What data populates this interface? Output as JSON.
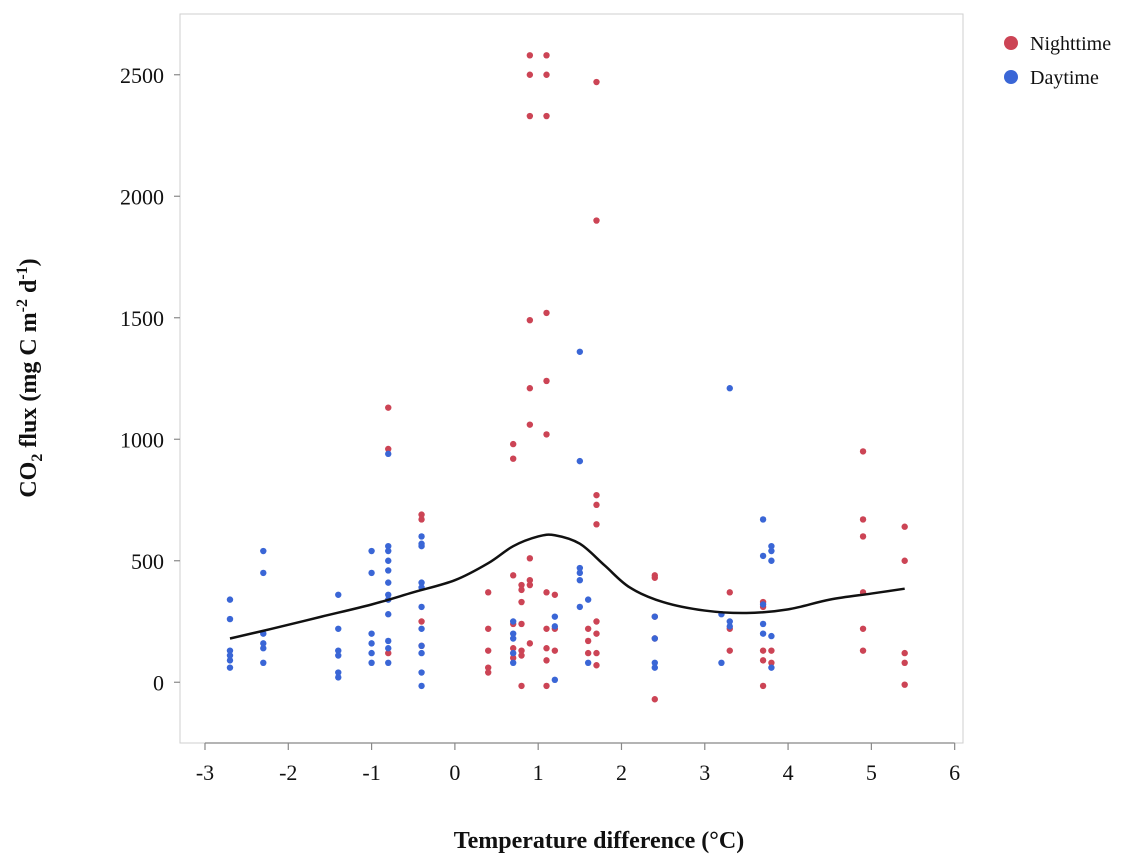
{
  "chart_data": {
    "type": "scatter",
    "title": "",
    "xlabel": "Temperature difference (°C)",
    "ylabel": {
      "pre": "CO",
      "sub": "2",
      "mid": " flux (mg C m",
      "sup1": "-2",
      "mid2": " d",
      "sup2": "-1",
      "post": ")"
    },
    "xlim": [
      -3.3,
      6.1
    ],
    "ylim": [
      -250,
      2750
    ],
    "x_ticks": [
      -3,
      -2,
      -1,
      0,
      1,
      2,
      3,
      4,
      5,
      6
    ],
    "x_tick_labels": [
      "-3",
      "-2",
      "-1",
      "0",
      "1",
      "2",
      "3",
      "4",
      "5",
      "6"
    ],
    "y_ticks": [
      0,
      500,
      1000,
      1500,
      2000,
      2500
    ],
    "y_tick_labels": [
      "0",
      "500",
      "1000",
      "1500",
      "2000",
      "2500"
    ],
    "grid": false,
    "legend_position": "top-right",
    "series": [
      {
        "name": "Nighttime",
        "color": "#cc4455",
        "points": [
          [
            -0.8,
            1130
          ],
          [
            -0.8,
            960
          ],
          [
            -0.8,
            120
          ],
          [
            -0.4,
            690
          ],
          [
            -0.4,
            670
          ],
          [
            -0.4,
            250
          ],
          [
            -0.4,
            150
          ],
          [
            0.4,
            370
          ],
          [
            0.4,
            220
          ],
          [
            0.4,
            130
          ],
          [
            0.4,
            60
          ],
          [
            0.4,
            40
          ],
          [
            0.7,
            980
          ],
          [
            0.7,
            920
          ],
          [
            0.7,
            440
          ],
          [
            0.7,
            240
          ],
          [
            0.7,
            140
          ],
          [
            0.7,
            100
          ],
          [
            0.8,
            400
          ],
          [
            0.8,
            380
          ],
          [
            0.8,
            330
          ],
          [
            0.8,
            240
          ],
          [
            0.8,
            130
          ],
          [
            0.8,
            110
          ],
          [
            0.8,
            -15
          ],
          [
            0.9,
            2580
          ],
          [
            0.9,
            2500
          ],
          [
            0.9,
            2330
          ],
          [
            0.9,
            1490
          ],
          [
            0.9,
            1210
          ],
          [
            0.9,
            1060
          ],
          [
            0.9,
            510
          ],
          [
            0.9,
            420
          ],
          [
            0.9,
            400
          ],
          [
            0.9,
            160
          ],
          [
            1.1,
            2580
          ],
          [
            1.1,
            2500
          ],
          [
            1.1,
            2330
          ],
          [
            1.1,
            1520
          ],
          [
            1.1,
            1240
          ],
          [
            1.1,
            1020
          ],
          [
            1.1,
            370
          ],
          [
            1.1,
            220
          ],
          [
            1.1,
            140
          ],
          [
            1.1,
            90
          ],
          [
            1.1,
            -15
          ],
          [
            1.2,
            360
          ],
          [
            1.2,
            220
          ],
          [
            1.2,
            130
          ],
          [
            1.6,
            220
          ],
          [
            1.6,
            170
          ],
          [
            1.6,
            120
          ],
          [
            1.7,
            2470
          ],
          [
            1.7,
            1900
          ],
          [
            1.7,
            770
          ],
          [
            1.7,
            730
          ],
          [
            1.7,
            650
          ],
          [
            1.7,
            250
          ],
          [
            1.7,
            200
          ],
          [
            1.7,
            120
          ],
          [
            1.7,
            70
          ],
          [
            2.4,
            440
          ],
          [
            2.4,
            430
          ],
          [
            2.4,
            270
          ],
          [
            2.4,
            180
          ],
          [
            2.4,
            -70
          ],
          [
            3.3,
            370
          ],
          [
            3.3,
            220
          ],
          [
            3.3,
            130
          ],
          [
            3.7,
            330
          ],
          [
            3.7,
            310
          ],
          [
            3.7,
            130
          ],
          [
            3.7,
            90
          ],
          [
            3.7,
            -15
          ],
          [
            3.8,
            130
          ],
          [
            3.8,
            80
          ],
          [
            4.9,
            950
          ],
          [
            4.9,
            670
          ],
          [
            4.9,
            600
          ],
          [
            4.9,
            370
          ],
          [
            4.9,
            220
          ],
          [
            4.9,
            130
          ],
          [
            5.4,
            640
          ],
          [
            5.4,
            500
          ],
          [
            5.4,
            120
          ],
          [
            5.4,
            80
          ],
          [
            5.4,
            -10
          ]
        ]
      },
      {
        "name": "Daytime",
        "color": "#3a66d6",
        "points": [
          [
            -2.7,
            340
          ],
          [
            -2.7,
            260
          ],
          [
            -2.7,
            130
          ],
          [
            -2.7,
            110
          ],
          [
            -2.7,
            90
          ],
          [
            -2.7,
            60
          ],
          [
            -2.3,
            540
          ],
          [
            -2.3,
            450
          ],
          [
            -2.3,
            200
          ],
          [
            -2.3,
            160
          ],
          [
            -2.3,
            140
          ],
          [
            -2.3,
            80
          ],
          [
            -1.4,
            360
          ],
          [
            -1.4,
            220
          ],
          [
            -1.4,
            130
          ],
          [
            -1.4,
            110
          ],
          [
            -1.4,
            40
          ],
          [
            -1.4,
            20
          ],
          [
            -1.0,
            540
          ],
          [
            -1.0,
            450
          ],
          [
            -1.0,
            200
          ],
          [
            -1.0,
            160
          ],
          [
            -1.0,
            120
          ],
          [
            -1.0,
            80
          ],
          [
            -0.8,
            940
          ],
          [
            -0.8,
            560
          ],
          [
            -0.8,
            540
          ],
          [
            -0.8,
            500
          ],
          [
            -0.8,
            460
          ],
          [
            -0.8,
            410
          ],
          [
            -0.8,
            360
          ],
          [
            -0.8,
            340
          ],
          [
            -0.8,
            280
          ],
          [
            -0.8,
            170
          ],
          [
            -0.8,
            140
          ],
          [
            -0.8,
            80
          ],
          [
            -0.4,
            600
          ],
          [
            -0.4,
            570
          ],
          [
            -0.4,
            560
          ],
          [
            -0.4,
            410
          ],
          [
            -0.4,
            390
          ],
          [
            -0.4,
            310
          ],
          [
            -0.4,
            220
          ],
          [
            -0.4,
            150
          ],
          [
            -0.4,
            120
          ],
          [
            -0.4,
            40
          ],
          [
            -0.4,
            -15
          ],
          [
            0.7,
            250
          ],
          [
            0.7,
            200
          ],
          [
            0.7,
            180
          ],
          [
            0.7,
            120
          ],
          [
            0.7,
            80
          ],
          [
            1.2,
            270
          ],
          [
            1.2,
            230
          ],
          [
            1.2,
            10
          ],
          [
            1.5,
            1360
          ],
          [
            1.5,
            910
          ],
          [
            1.5,
            470
          ],
          [
            1.5,
            450
          ],
          [
            1.5,
            420
          ],
          [
            1.5,
            310
          ],
          [
            1.6,
            340
          ],
          [
            1.6,
            80
          ],
          [
            2.4,
            270
          ],
          [
            2.4,
            180
          ],
          [
            2.4,
            80
          ],
          [
            2.4,
            60
          ],
          [
            3.2,
            280
          ],
          [
            3.2,
            80
          ],
          [
            3.3,
            1210
          ],
          [
            3.3,
            250
          ],
          [
            3.3,
            230
          ],
          [
            3.7,
            670
          ],
          [
            3.7,
            520
          ],
          [
            3.7,
            320
          ],
          [
            3.7,
            240
          ],
          [
            3.7,
            200
          ],
          [
            3.8,
            560
          ],
          [
            3.8,
            540
          ],
          [
            3.8,
            500
          ],
          [
            3.8,
            190
          ],
          [
            3.8,
            60
          ]
        ]
      }
    ],
    "smooth_curve": {
      "color": "#111111",
      "points": [
        [
          -2.7,
          180
        ],
        [
          -2.2,
          220
        ],
        [
          -1.6,
          270
        ],
        [
          -1.0,
          320
        ],
        [
          -0.5,
          370
        ],
        [
          0.0,
          420
        ],
        [
          0.4,
          490
        ],
        [
          0.7,
          560
        ],
        [
          1.0,
          600
        ],
        [
          1.2,
          605
        ],
        [
          1.5,
          570
        ],
        [
          1.8,
          480
        ],
        [
          2.1,
          390
        ],
        [
          2.5,
          330
        ],
        [
          3.0,
          295
        ],
        [
          3.5,
          285
        ],
        [
          4.0,
          300
        ],
        [
          4.5,
          340
        ],
        [
          5.0,
          365
        ],
        [
          5.4,
          385
        ]
      ]
    }
  }
}
